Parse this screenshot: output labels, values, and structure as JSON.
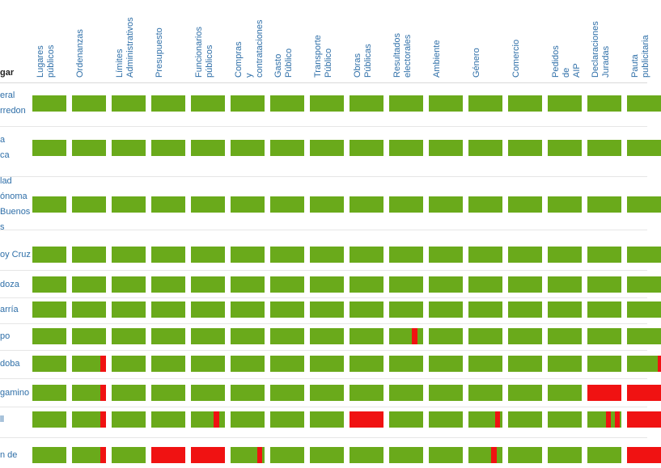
{
  "chart_data": {
    "type": "heatmap",
    "row_header": "gar",
    "columns": [
      "Lugares\npúblicos",
      "Ordenanzas",
      "Límites\nAdministrativos",
      "Presupuesto",
      "Funcionarios\npúblicos",
      "Compras\ny\ncontrataciones",
      "Gasto\nPúblico",
      "Transporte\nPúblico",
      "Obras\nPúblicas",
      "Resultados\nelectorales",
      "Ambiente",
      "Género",
      "Comercio",
      "Pedidos\nde\nAIP",
      "Declaraciones\nJuradas",
      "Pauta\npublicitaria"
    ],
    "rows": [
      {
        "label": "eral\nrredon",
        "red_segments": [
          [],
          [],
          [],
          [],
          [],
          [],
          [],
          [],
          [],
          [],
          [],
          [],
          [],
          [],
          [],
          []
        ]
      },
      {
        "label": "a\nca",
        "red_segments": [
          [],
          [],
          [],
          [],
          [],
          [],
          [],
          [],
          [],
          [],
          [],
          [],
          [],
          [],
          [],
          []
        ]
      },
      {
        "label": "lad\nónoma\nBuenos\ns",
        "red_segments": [
          [],
          [],
          [],
          [],
          [],
          [],
          [],
          [],
          [],
          [],
          [],
          [],
          [],
          [],
          [],
          []
        ]
      },
      {
        "label": "oy Cruz",
        "red_segments": [
          [],
          [],
          [],
          [],
          [],
          [],
          [],
          [],
          [],
          [],
          [],
          [],
          [],
          [],
          [],
          []
        ]
      },
      {
        "label": "doza",
        "red_segments": [
          [],
          [],
          [],
          [],
          [],
          [],
          [],
          [],
          [],
          [],
          [],
          [],
          [],
          [],
          [],
          []
        ]
      },
      {
        "label": "arría",
        "red_segments": [
          [],
          [],
          [],
          [],
          [],
          [],
          [],
          [],
          [],
          [],
          [],
          [],
          [],
          [],
          [],
          []
        ]
      },
      {
        "label": "po",
        "red_segments": [
          [],
          [],
          [],
          [],
          [],
          [],
          [],
          [],
          [],
          [
            [
              0.67,
              0.83
            ]
          ],
          [],
          [],
          [],
          [],
          [],
          []
        ]
      },
      {
        "label": "doba",
        "red_segments": [
          [],
          [
            [
              0.83,
              1.0
            ]
          ],
          [],
          [],
          [],
          [],
          [],
          [],
          [],
          [],
          [],
          [],
          [],
          [],
          [],
          [
            [
              0.9,
              1.0
            ]
          ]
        ]
      },
      {
        "label": "gamino",
        "red_segments": [
          [],
          [
            [
              0.83,
              1.0
            ]
          ],
          [],
          [],
          [],
          [],
          [],
          [],
          [],
          [],
          [],
          [],
          [],
          [],
          [
            [
              0.0,
              1.0
            ]
          ],
          [
            [
              0.0,
              1.0
            ]
          ]
        ]
      },
      {
        "label": "ll",
        "red_segments": [
          [],
          [
            [
              0.83,
              1.0
            ]
          ],
          [],
          [],
          [
            [
              0.67,
              0.83
            ]
          ],
          [],
          [],
          [],
          [
            [
              0.0,
              1.0
            ]
          ],
          [],
          [],
          [
            [
              0.78,
              0.92
            ]
          ],
          [],
          [],
          [
            [
              0.55,
              0.7
            ],
            [
              0.82,
              0.95
            ]
          ],
          [
            [
              0.0,
              1.0
            ]
          ]
        ]
      },
      {
        "label": "n de",
        "red_segments": [
          [],
          [
            [
              0.83,
              1.0
            ]
          ],
          [],
          [
            [
              0.0,
              1.0
            ]
          ],
          [
            [
              0.0,
              1.0
            ]
          ],
          [
            [
              0.78,
              0.92
            ]
          ],
          [],
          [],
          [],
          [],
          [],
          [
            [
              0.67,
              0.83
            ]
          ],
          [],
          [],
          [],
          [
            [
              0.0,
              1.0
            ]
          ]
        ]
      }
    ],
    "legend": "none"
  }
}
